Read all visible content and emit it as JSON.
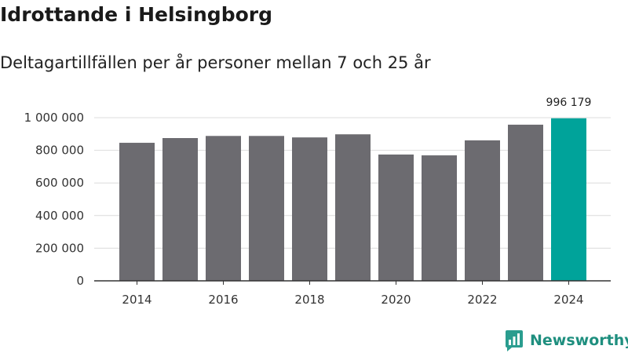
{
  "colors": {
    "bar_default": "#6c6b70",
    "bar_highlight": "#00a39a",
    "grid": "#dcdcdc",
    "axis": "#333333",
    "brand": "#1f8f7f"
  },
  "chart_data": {
    "type": "bar",
    "title": "Idrottande i Helsingborg",
    "subtitle": "Deltagartillfällen per år personer mellan 7 och 25 år",
    "xlabel": "",
    "ylabel": "",
    "categories": [
      2014,
      2015,
      2016,
      2017,
      2018,
      2019,
      2020,
      2021,
      2022,
      2023,
      2024
    ],
    "values": [
      846000,
      875000,
      888000,
      888000,
      879000,
      898000,
      774000,
      769000,
      861000,
      957000,
      996179
    ],
    "highlight_index": 10,
    "value_labels": [
      {
        "index": 10,
        "text": "996 179"
      }
    ],
    "x_ticks": [
      "2014",
      "2016",
      "2018",
      "2020",
      "2022",
      "2024"
    ],
    "y_ticks": [
      {
        "value": 0,
        "label": "0"
      },
      {
        "value": 200000,
        "label": "200 000"
      },
      {
        "value": 400000,
        "label": "400 000"
      },
      {
        "value": 600000,
        "label": "600 000"
      },
      {
        "value": 800000,
        "label": "800 000"
      },
      {
        "value": 1000000,
        "label": "1 000 000"
      }
    ],
    "ylim": [
      0,
      1000000
    ],
    "grid": true
  },
  "brand": {
    "name": "Newsworthy",
    "icon": "newsworthy-logo-icon"
  }
}
